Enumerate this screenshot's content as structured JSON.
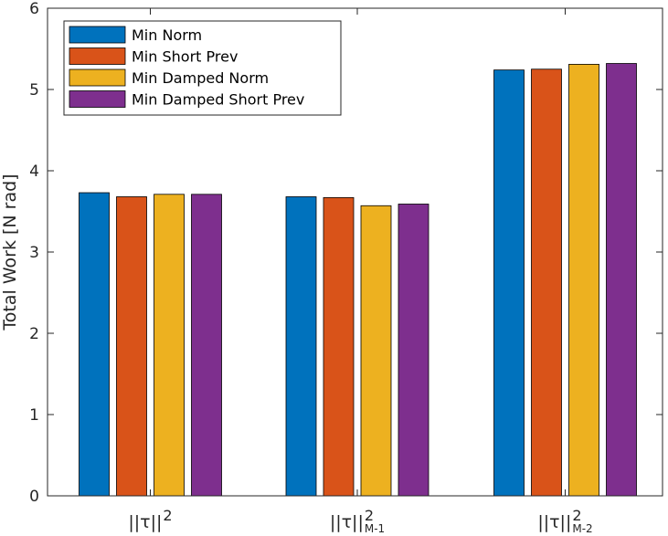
{
  "chart_data": {
    "type": "bar",
    "categories": [
      {
        "base": "||τ||",
        "sup": "2",
        "sub": ""
      },
      {
        "base": "||τ||",
        "sup": "2",
        "sub": "M-1"
      },
      {
        "base": "||τ||",
        "sup": "2",
        "sub": "M-2"
      }
    ],
    "series": [
      {
        "name": "Min Norm",
        "color": "#0072BD",
        "values": [
          3.73,
          3.68,
          5.24
        ]
      },
      {
        "name": "Min Short Prev",
        "color": "#D95319",
        "values": [
          3.68,
          3.67,
          5.25
        ]
      },
      {
        "name": "Min Damped Norm",
        "color": "#EDB120",
        "values": [
          3.71,
          3.57,
          5.31
        ]
      },
      {
        "name": "Min Damped Short Prev",
        "color": "#7E2F8E",
        "values": [
          3.71,
          3.59,
          5.32
        ]
      }
    ],
    "ylabel": "Total Work [N rad]",
    "xlabel": "",
    "ylim": [
      0,
      6
    ],
    "yticks": [
      "0",
      "1",
      "2",
      "3",
      "4",
      "5",
      "6"
    ],
    "legend_position": "top-left",
    "grid": false
  }
}
